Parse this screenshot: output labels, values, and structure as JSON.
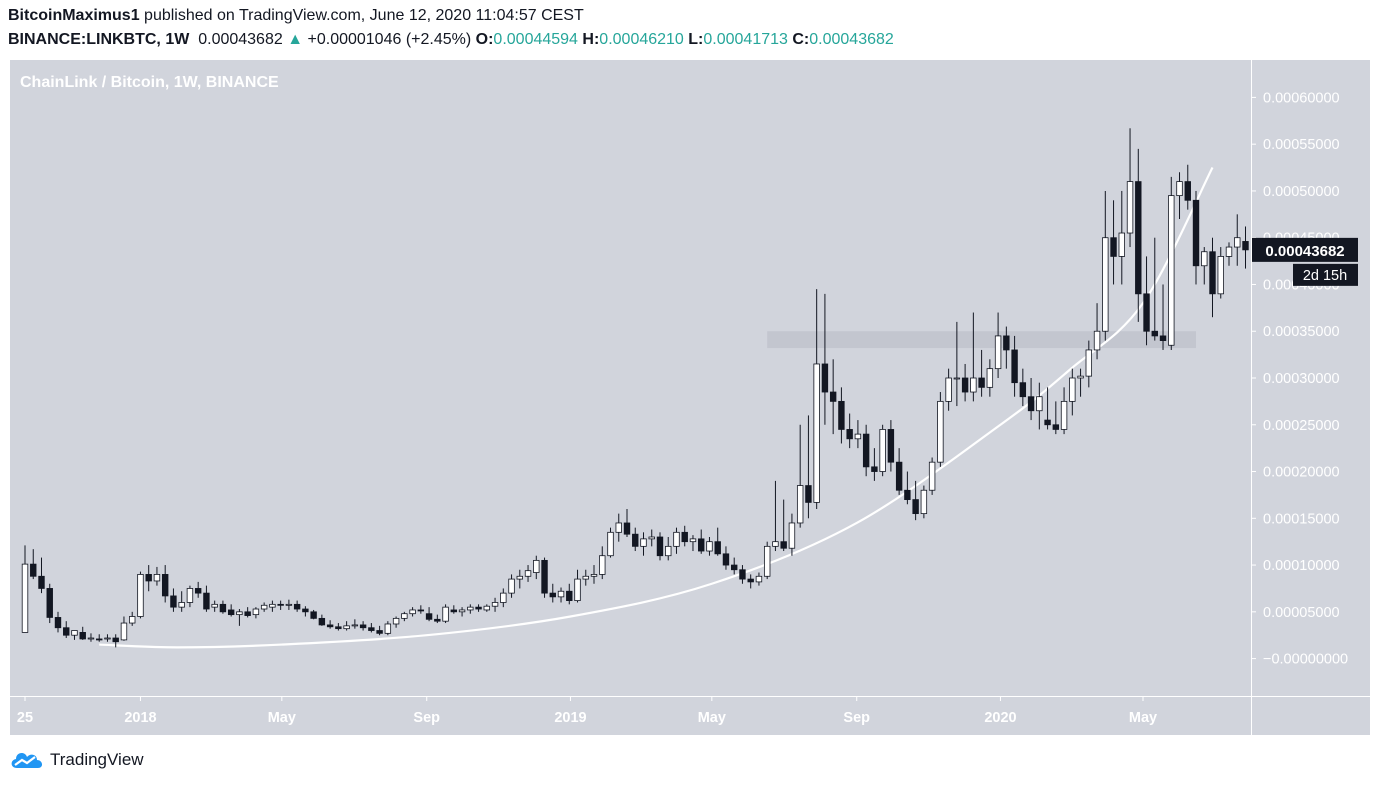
{
  "header": {
    "author": "BitcoinMaximus1",
    "published": "published on TradingView.com, June 12, 2020 11:04:57 CEST",
    "symbol": "BINANCE:LINKBTC, 1W",
    "last": "0.00043682",
    "change_arrow": "▲",
    "change": "+0.00001046 (+2.45%)",
    "o_label": "O:",
    "o": "0.00044594",
    "h_label": "H:",
    "h": "0.00046210",
    "l_label": "L:",
    "l": "0.00041713",
    "c_label": "C:",
    "c": "0.00043682"
  },
  "watermark": "ChainLink / Bitcoin, 1W, BINANCE",
  "footer": {
    "brand": "TradingView",
    "logo_icon": "tradingview-cloud-icon"
  },
  "colors": {
    "plot_bg": "#d1d4dc",
    "up_fill": "#ffffff",
    "down_fill": "#131722",
    "curve": "#ffffff",
    "band": "#c3c6cf",
    "up_text": "#26a69a"
  },
  "chart_data": {
    "type": "candlestick",
    "title": "ChainLink / Bitcoin, 1W, BINANCE",
    "ylim": [
      -4e-05,
      0.00064
    ],
    "y_ticks": [
      "0.00060000",
      "0.00055000",
      "0.00050000",
      "0.00045000",
      "0.00040000",
      "0.00035000",
      "0.00030000",
      "0.00025000",
      "0.00020000",
      "0.00015000",
      "0.00010000",
      "0.00005000",
      "−0.00000000"
    ],
    "y_tick_values": [
      0.0006,
      0.00055,
      0.0005,
      0.00045,
      0.0004,
      0.00035,
      0.0003,
      0.00025,
      0.0002,
      0.00015,
      0.0001,
      5e-05,
      0
    ],
    "x_ticks": [
      "25",
      "2018",
      "May",
      "Sep",
      "2019",
      "May",
      "Sep",
      "2020",
      "May"
    ],
    "x_tick_dates": [
      "2017-09-25",
      "2018-01-01",
      "2018-05-01",
      "2018-09-01",
      "2019-01-01",
      "2019-05-01",
      "2019-09-01",
      "2020-01-01",
      "2020-05-01"
    ],
    "first_candle": "2017-09-25",
    "interval_days": 7,
    "last_price_label": "0.00043682",
    "countdown_label": "2d 15h",
    "support_zone": {
      "low": 0.000332,
      "high": 0.00035,
      "from": "2019-06-17",
      "to": "2020-06-15"
    },
    "curve": {
      "from": "2017-11-27",
      "to": "2020-06-29",
      "points": [
        {
          "date": "2017-11-27",
          "y": 1.5e-05
        },
        {
          "date": "2018-02-01",
          "y": 1.2e-05
        },
        {
          "date": "2018-05-01",
          "y": 1.5e-05
        },
        {
          "date": "2018-09-01",
          "y": 2.5e-05
        },
        {
          "date": "2019-01-01",
          "y": 4.5e-05
        },
        {
          "date": "2019-05-01",
          "y": 8e-05
        },
        {
          "date": "2019-09-01",
          "y": 0.000145
        },
        {
          "date": "2020-01-01",
          "y": 0.00025
        },
        {
          "date": "2020-03-01",
          "y": 0.00031
        },
        {
          "date": "2020-05-01",
          "y": 0.00038
        },
        {
          "date": "2020-06-29",
          "y": 0.000525
        }
      ]
    },
    "candles": [
      {
        "o": 2.8e-05,
        "h": 0.000121,
        "l": 2.8e-05,
        "c": 0.000101
      },
      {
        "o": 0.000101,
        "h": 0.000117,
        "l": 8.5e-05,
        "c": 8.8e-05
      },
      {
        "o": 8.8e-05,
        "h": 0.000108,
        "l": 7e-05,
        "c": 7.5e-05
      },
      {
        "o": 7.5e-05,
        "h": 8e-05,
        "l": 3.8e-05,
        "c": 4.4e-05
      },
      {
        "o": 4.4e-05,
        "h": 5e-05,
        "l": 2.8e-05,
        "c": 3.3e-05
      },
      {
        "o": 3.3e-05,
        "h": 4e-05,
        "l": 2.2e-05,
        "c": 2.5e-05
      },
      {
        "o": 2.5e-05,
        "h": 3e-05,
        "l": 2e-05,
        "c": 3e-05
      },
      {
        "o": 2.8e-05,
        "h": 3.4e-05,
        "l": 2e-05,
        "c": 2.1e-05
      },
      {
        "o": 2.1e-05,
        "h": 2.7e-05,
        "l": 1.8e-05,
        "c": 2.2e-05
      },
      {
        "o": 2.1e-05,
        "h": 2.6e-05,
        "l": 1.8e-05,
        "c": 2e-05
      },
      {
        "o": 2.2e-05,
        "h": 2.6e-05,
        "l": 1.8e-05,
        "c": 2.2e-05
      },
      {
        "o": 2.2e-05,
        "h": 2.6e-05,
        "l": 1.2e-05,
        "c": 1.8e-05
      },
      {
        "o": 2e-05,
        "h": 4.5e-05,
        "l": 1.9e-05,
        "c": 3.8e-05
      },
      {
        "o": 3.8e-05,
        "h": 5e-05,
        "l": 3.5e-05,
        "c": 4.5e-05
      },
      {
        "o": 4.5e-05,
        "h": 9.3e-05,
        "l": 4.3e-05,
        "c": 9e-05
      },
      {
        "o": 9e-05,
        "h": 0.0001,
        "l": 7.2e-05,
        "c": 8.3e-05
      },
      {
        "o": 8.3e-05,
        "h": 9.8e-05,
        "l": 7.8e-05,
        "c": 9e-05
      },
      {
        "o": 9e-05,
        "h": 0.0001,
        "l": 6e-05,
        "c": 6.7e-05
      },
      {
        "o": 6.7e-05,
        "h": 7.5e-05,
        "l": 5e-05,
        "c": 5.5e-05
      },
      {
        "o": 5.5e-05,
        "h": 7.2e-05,
        "l": 5e-05,
        "c": 6e-05
      },
      {
        "o": 6e-05,
        "h": 7.8e-05,
        "l": 5.5e-05,
        "c": 7.5e-05
      },
      {
        "o": 7.5e-05,
        "h": 8.2e-05,
        "l": 6.5e-05,
        "c": 7e-05
      },
      {
        "o": 7e-05,
        "h": 7.8e-05,
        "l": 5e-05,
        "c": 5.3e-05
      },
      {
        "o": 5.5e-05,
        "h": 6.2e-05,
        "l": 5e-05,
        "c": 5.8e-05
      },
      {
        "o": 5.8e-05,
        "h": 6.2e-05,
        "l": 4.8e-05,
        "c": 5e-05
      },
      {
        "o": 5.2e-05,
        "h": 5.8e-05,
        "l": 4.5e-05,
        "c": 4.7e-05
      },
      {
        "o": 4.7e-05,
        "h": 5.3e-05,
        "l": 3.5e-05,
        "c": 5e-05
      },
      {
        "o": 5e-05,
        "h": 5.5e-05,
        "l": 4.4e-05,
        "c": 4.6e-05
      },
      {
        "o": 4.7e-05,
        "h": 5.5e-05,
        "l": 4.3e-05,
        "c": 5.3e-05
      },
      {
        "o": 5.3e-05,
        "h": 6e-05,
        "l": 5e-05,
        "c": 5.7e-05
      },
      {
        "o": 5.5e-05,
        "h": 6.2e-05,
        "l": 5e-05,
        "c": 5.8e-05
      },
      {
        "o": 5.8e-05,
        "h": 6.2e-05,
        "l": 5.2e-05,
        "c": 5.7e-05
      },
      {
        "o": 5.7e-05,
        "h": 6.3e-05,
        "l": 5.2e-05,
        "c": 5.8e-05
      },
      {
        "o": 5.8e-05,
        "h": 6.2e-05,
        "l": 5e-05,
        "c": 5.3e-05
      },
      {
        "o": 5.3e-05,
        "h": 5.6e-05,
        "l": 4.5e-05,
        "c": 5e-05
      },
      {
        "o": 5e-05,
        "h": 5.2e-05,
        "l": 4.2e-05,
        "c": 4.3e-05
      },
      {
        "o": 4.3e-05,
        "h": 4.7e-05,
        "l": 3.5e-05,
        "c": 3.6e-05
      },
      {
        "o": 3.6e-05,
        "h": 4.1e-05,
        "l": 3.2e-05,
        "c": 3.4e-05
      },
      {
        "o": 3.4e-05,
        "h": 3.8e-05,
        "l": 3e-05,
        "c": 3.2e-05
      },
      {
        "o": 3.2e-05,
        "h": 4e-05,
        "l": 3e-05,
        "c": 3.5e-05
      },
      {
        "o": 3.5e-05,
        "h": 4.2e-05,
        "l": 3.2e-05,
        "c": 3.6e-05
      },
      {
        "o": 3.6e-05,
        "h": 4e-05,
        "l": 3e-05,
        "c": 3.3e-05
      },
      {
        "o": 3.3e-05,
        "h": 3.8e-05,
        "l": 2.8e-05,
        "c": 3e-05
      },
      {
        "o": 3e-05,
        "h": 3.5e-05,
        "l": 2.5e-05,
        "c": 2.7e-05
      },
      {
        "o": 2.7e-05,
        "h": 4e-05,
        "l": 2.5e-05,
        "c": 3.7e-05
      },
      {
        "o": 3.7e-05,
        "h": 4.5e-05,
        "l": 3.3e-05,
        "c": 4.3e-05
      },
      {
        "o": 4.3e-05,
        "h": 5e-05,
        "l": 4e-05,
        "c": 4.8e-05
      },
      {
        "o": 4.8e-05,
        "h": 5.5e-05,
        "l": 4.5e-05,
        "c": 5.2e-05
      },
      {
        "o": 5.2e-05,
        "h": 5.7e-05,
        "l": 4.8e-05,
        "c": 5.1e-05
      },
      {
        "o": 4.8e-05,
        "h": 5.5e-05,
        "l": 4e-05,
        "c": 4.2e-05
      },
      {
        "o": 4.2e-05,
        "h": 4.7e-05,
        "l": 3.8e-05,
        "c": 4e-05
      },
      {
        "o": 4e-05,
        "h": 5.8e-05,
        "l": 3.8e-05,
        "c": 5.5e-05
      },
      {
        "o": 5.2e-05,
        "h": 5.7e-05,
        "l": 4.8e-05,
        "c": 5e-05
      },
      {
        "o": 5e-05,
        "h": 5.5e-05,
        "l": 4.5e-05,
        "c": 5.2e-05
      },
      {
        "o": 5.2e-05,
        "h": 5.8e-05,
        "l": 4.8e-05,
        "c": 5.5e-05
      },
      {
        "o": 5.5e-05,
        "h": 5.8e-05,
        "l": 5e-05,
        "c": 5.3e-05
      },
      {
        "o": 5.2e-05,
        "h": 5.8e-05,
        "l": 5e-05,
        "c": 5.6e-05
      },
      {
        "o": 5.6e-05,
        "h": 6.5e-05,
        "l": 5e-05,
        "c": 6e-05
      },
      {
        "o": 6e-05,
        "h": 7.5e-05,
        "l": 5.5e-05,
        "c": 7e-05
      },
      {
        "o": 7e-05,
        "h": 9e-05,
        "l": 6.5e-05,
        "c": 8.5e-05
      },
      {
        "o": 8.5e-05,
        "h": 9.5e-05,
        "l": 7.5e-05,
        "c": 8.8e-05
      },
      {
        "o": 8.8e-05,
        "h": 0.0001,
        "l": 8.2e-05,
        "c": 9.4e-05
      },
      {
        "o": 9.2e-05,
        "h": 0.00011,
        "l": 8.5e-05,
        "c": 0.000105
      },
      {
        "o": 0.000105,
        "h": 0.000108,
        "l": 6.5e-05,
        "c": 7e-05
      },
      {
        "o": 7e-05,
        "h": 8e-05,
        "l": 6e-05,
        "c": 6.6e-05
      },
      {
        "o": 6.6e-05,
        "h": 7.6e-05,
        "l": 6e-05,
        "c": 7.2e-05
      },
      {
        "o": 7.2e-05,
        "h": 8e-05,
        "l": 5.8e-05,
        "c": 6.2e-05
      },
      {
        "o": 6.2e-05,
        "h": 9.5e-05,
        "l": 6e-05,
        "c": 8.5e-05
      },
      {
        "o": 8.5e-05,
        "h": 9.5e-05,
        "l": 7.8e-05,
        "c": 8.8e-05
      },
      {
        "o": 8.8e-05,
        "h": 0.0001,
        "l": 8e-05,
        "c": 9e-05
      },
      {
        "o": 9e-05,
        "h": 0.00012,
        "l": 8.5e-05,
        "c": 0.00011
      },
      {
        "o": 0.00011,
        "h": 0.00014,
        "l": 0.000108,
        "c": 0.000135
      },
      {
        "o": 0.000135,
        "h": 0.000155,
        "l": 0.000125,
        "c": 0.000145
      },
      {
        "o": 0.000145,
        "h": 0.00016,
        "l": 0.00013,
        "c": 0.000133
      },
      {
        "o": 0.000133,
        "h": 0.00014,
        "l": 0.000115,
        "c": 0.00012
      },
      {
        "o": 0.00012,
        "h": 0.000135,
        "l": 0.00011,
        "c": 0.000128
      },
      {
        "o": 0.000128,
        "h": 0.000138,
        "l": 0.00012,
        "c": 0.00013
      },
      {
        "o": 0.00013,
        "h": 0.000135,
        "l": 0.000105,
        "c": 0.00011
      },
      {
        "o": 0.00011,
        "h": 0.00013,
        "l": 0.000105,
        "c": 0.00012
      },
      {
        "o": 0.00012,
        "h": 0.00014,
        "l": 0.000112,
        "c": 0.000135
      },
      {
        "o": 0.000135,
        "h": 0.000142,
        "l": 0.00012,
        "c": 0.000125
      },
      {
        "o": 0.000125,
        "h": 0.000132,
        "l": 0.000115,
        "c": 0.000128
      },
      {
        "o": 0.000128,
        "h": 0.000138,
        "l": 0.000112,
        "c": 0.000115
      },
      {
        "o": 0.000115,
        "h": 0.00013,
        "l": 0.00011,
        "c": 0.000125
      },
      {
        "o": 0.000125,
        "h": 0.00014,
        "l": 0.00011,
        "c": 0.000112
      },
      {
        "o": 0.000112,
        "h": 0.00012,
        "l": 9.5e-05,
        "c": 0.0001
      },
      {
        "o": 0.0001,
        "h": 0.000108,
        "l": 9e-05,
        "c": 9.5e-05
      },
      {
        "o": 9.5e-05,
        "h": 0.0001,
        "l": 8e-05,
        "c": 8.5e-05
      },
      {
        "o": 8.5e-05,
        "h": 9e-05,
        "l": 7.5e-05,
        "c": 8.2e-05
      },
      {
        "o": 8.2e-05,
        "h": 9.2e-05,
        "l": 7.8e-05,
        "c": 8.8e-05
      },
      {
        "o": 8.8e-05,
        "h": 0.000125,
        "l": 8.5e-05,
        "c": 0.00012
      },
      {
        "o": 0.00012,
        "h": 0.00019,
        "l": 0.000115,
        "c": 0.000125
      },
      {
        "o": 0.000125,
        "h": 0.00017,
        "l": 0.000115,
        "c": 0.000118
      },
      {
        "o": 0.000118,
        "h": 0.000155,
        "l": 0.00011,
        "c": 0.000145
      },
      {
        "o": 0.000145,
        "h": 0.00025,
        "l": 0.00014,
        "c": 0.000185
      },
      {
        "o": 0.000185,
        "h": 0.00026,
        "l": 0.00015,
        "c": 0.000167
      },
      {
        "o": 0.000167,
        "h": 0.000395,
        "l": 0.00016,
        "c": 0.000315
      },
      {
        "o": 0.000315,
        "h": 0.00039,
        "l": 0.00025,
        "c": 0.000285
      },
      {
        "o": 0.000285,
        "h": 0.00032,
        "l": 0.00024,
        "c": 0.000275
      },
      {
        "o": 0.000275,
        "h": 0.00029,
        "l": 0.00023,
        "c": 0.000245
      },
      {
        "o": 0.000245,
        "h": 0.000262,
        "l": 0.000225,
        "c": 0.000235
      },
      {
        "o": 0.000235,
        "h": 0.000255,
        "l": 0.000225,
        "c": 0.00024
      },
      {
        "o": 0.00024,
        "h": 0.00025,
        "l": 0.000195,
        "c": 0.000205
      },
      {
        "o": 0.000205,
        "h": 0.000225,
        "l": 0.00019,
        "c": 0.0002
      },
      {
        "o": 0.0002,
        "h": 0.00025,
        "l": 0.000195,
        "c": 0.000245
      },
      {
        "o": 0.000245,
        "h": 0.000255,
        "l": 0.0002,
        "c": 0.00021
      },
      {
        "o": 0.00021,
        "h": 0.000225,
        "l": 0.000175,
        "c": 0.00018
      },
      {
        "o": 0.00018,
        "h": 0.0002,
        "l": 0.000165,
        "c": 0.00017
      },
      {
        "o": 0.00017,
        "h": 0.00019,
        "l": 0.000148,
        "c": 0.000155
      },
      {
        "o": 0.000155,
        "h": 0.000185,
        "l": 0.00015,
        "c": 0.00018
      },
      {
        "o": 0.00018,
        "h": 0.000215,
        "l": 0.000175,
        "c": 0.00021
      },
      {
        "o": 0.00021,
        "h": 0.000285,
        "l": 0.000205,
        "c": 0.000275
      },
      {
        "o": 0.000275,
        "h": 0.00031,
        "l": 0.000265,
        "c": 0.0003
      },
      {
        "o": 0.0003,
        "h": 0.00036,
        "l": 0.00027,
        "c": 0.0003
      },
      {
        "o": 0.0003,
        "h": 0.000315,
        "l": 0.000275,
        "c": 0.000285
      },
      {
        "o": 0.000285,
        "h": 0.00037,
        "l": 0.000275,
        "c": 0.0003
      },
      {
        "o": 0.0003,
        "h": 0.00033,
        "l": 0.00028,
        "c": 0.00029
      },
      {
        "o": 0.00029,
        "h": 0.00032,
        "l": 0.00028,
        "c": 0.00031
      },
      {
        "o": 0.00031,
        "h": 0.00037,
        "l": 0.0003,
        "c": 0.000345
      },
      {
        "o": 0.000345,
        "h": 0.000355,
        "l": 0.00031,
        "c": 0.00033
      },
      {
        "o": 0.00033,
        "h": 0.000345,
        "l": 0.00028,
        "c": 0.000295
      },
      {
        "o": 0.000295,
        "h": 0.00031,
        "l": 0.00027,
        "c": 0.00028
      },
      {
        "o": 0.00028,
        "h": 0.0003,
        "l": 0.000255,
        "c": 0.000265
      },
      {
        "o": 0.000265,
        "h": 0.000295,
        "l": 0.000245,
        "c": 0.00028
      },
      {
        "o": 0.000255,
        "h": 0.00029,
        "l": 0.000245,
        "c": 0.00025
      },
      {
        "o": 0.00025,
        "h": 0.000275,
        "l": 0.00024,
        "c": 0.000245
      },
      {
        "o": 0.000245,
        "h": 0.00029,
        "l": 0.00024,
        "c": 0.000275
      },
      {
        "o": 0.000275,
        "h": 0.00031,
        "l": 0.00026,
        "c": 0.0003
      },
      {
        "o": 0.0003,
        "h": 0.00031,
        "l": 0.00028,
        "c": 0.000302
      },
      {
        "o": 0.000302,
        "h": 0.00034,
        "l": 0.00029,
        "c": 0.00033
      },
      {
        "o": 0.00033,
        "h": 0.00038,
        "l": 0.00032,
        "c": 0.00035
      },
      {
        "o": 0.00035,
        "h": 0.0005,
        "l": 0.00034,
        "c": 0.00045
      },
      {
        "o": 0.00045,
        "h": 0.00049,
        "l": 0.0004,
        "c": 0.00043
      },
      {
        "o": 0.00043,
        "h": 0.0005,
        "l": 0.0004,
        "c": 0.000455
      },
      {
        "o": 0.000455,
        "h": 0.000567,
        "l": 0.00044,
        "c": 0.00051
      },
      {
        "o": 0.00051,
        "h": 0.000545,
        "l": 0.00036,
        "c": 0.00039
      },
      {
        "o": 0.00039,
        "h": 0.00043,
        "l": 0.000335,
        "c": 0.00035
      },
      {
        "o": 0.00035,
        "h": 0.00045,
        "l": 0.00034,
        "c": 0.000345
      },
      {
        "o": 0.000345,
        "h": 0.0004,
        "l": 0.00033,
        "c": 0.00034
      },
      {
        "o": 0.000335,
        "h": 0.000515,
        "l": 0.00033,
        "c": 0.000495
      },
      {
        "o": 0.000495,
        "h": 0.00052,
        "l": 0.00047,
        "c": 0.00051
      },
      {
        "o": 0.00051,
        "h": 0.000528,
        "l": 0.00048,
        "c": 0.00049
      },
      {
        "o": 0.00049,
        "h": 0.0005,
        "l": 0.0004,
        "c": 0.00042
      },
      {
        "o": 0.00042,
        "h": 0.00044,
        "l": 0.0004,
        "c": 0.000435
      },
      {
        "o": 0.000435,
        "h": 0.00045,
        "l": 0.000365,
        "c": 0.00039
      },
      {
        "o": 0.00039,
        "h": 0.00044,
        "l": 0.000385,
        "c": 0.00043
      },
      {
        "o": 0.00043,
        "h": 0.000445,
        "l": 0.00042,
        "c": 0.00044
      },
      {
        "o": 0.00044,
        "h": 0.000475,
        "l": 0.00042,
        "c": 0.00045
      },
      {
        "o": 0.000446,
        "h": 0.000462,
        "l": 0.000417,
        "c": 0.000437
      }
    ]
  }
}
